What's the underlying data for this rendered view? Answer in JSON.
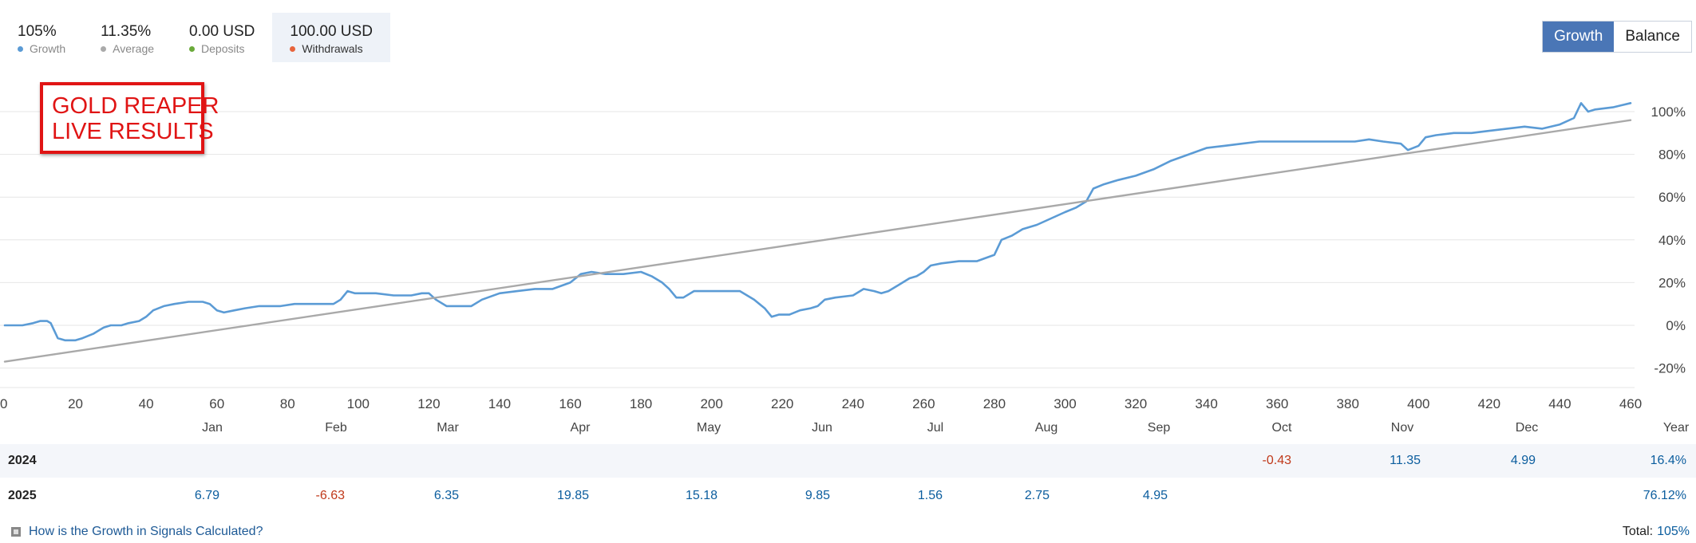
{
  "stats": [
    {
      "value": "105%",
      "label": "Growth",
      "color": "#5b9bd5",
      "selected": false
    },
    {
      "value": "11.35%",
      "label": "Average",
      "color": "#aaaaaa",
      "selected": false
    },
    {
      "value": "0.00 USD",
      "label": "Deposits",
      "color": "#6aaa3a",
      "selected": false
    },
    {
      "value": "100.00 USD",
      "label": "Withdrawals",
      "color": "#e8643c",
      "selected": true
    }
  ],
  "toggle": {
    "growth": "Growth",
    "balance": "Balance"
  },
  "banner": {
    "line1": "GOLD REAPER",
    "line2": "LIVE RESULTS"
  },
  "chart_data": {
    "type": "line",
    "xlim": [
      0,
      460
    ],
    "ylim": [
      -25,
      110
    ],
    "x_ticks": [
      0,
      20,
      40,
      60,
      80,
      100,
      120,
      140,
      160,
      180,
      200,
      220,
      240,
      260,
      280,
      300,
      320,
      340,
      360,
      380,
      400,
      420,
      440,
      460
    ],
    "y_ticks": [
      -20,
      0,
      20,
      40,
      60,
      80,
      100
    ],
    "y_tick_suffix": "%",
    "grid": true,
    "series": [
      {
        "color": "#5b9bd5",
        "points": [
          [
            0,
            0
          ],
          [
            5,
            0
          ],
          [
            8,
            1
          ],
          [
            10,
            2
          ],
          [
            12,
            2
          ],
          [
            13,
            1
          ],
          [
            15,
            -6
          ],
          [
            17,
            -7
          ],
          [
            20,
            -7
          ],
          [
            22,
            -6
          ],
          [
            25,
            -4
          ],
          [
            28,
            -1
          ],
          [
            30,
            0
          ],
          [
            33,
            0
          ],
          [
            35,
            1
          ],
          [
            38,
            2
          ],
          [
            40,
            4
          ],
          [
            42,
            7
          ],
          [
            45,
            9
          ],
          [
            48,
            10
          ],
          [
            52,
            11
          ],
          [
            56,
            11
          ],
          [
            58,
            10
          ],
          [
            60,
            7
          ],
          [
            62,
            6
          ],
          [
            65,
            7
          ],
          [
            68,
            8
          ],
          [
            72,
            9
          ],
          [
            75,
            9
          ],
          [
            78,
            9
          ],
          [
            82,
            10
          ],
          [
            86,
            10
          ],
          [
            90,
            10
          ],
          [
            93,
            10
          ],
          [
            95,
            12
          ],
          [
            97,
            16
          ],
          [
            99,
            15
          ],
          [
            102,
            15
          ],
          [
            105,
            15
          ],
          [
            110,
            14
          ],
          [
            115,
            14
          ],
          [
            118,
            15
          ],
          [
            120,
            15
          ],
          [
            122,
            12
          ],
          [
            125,
            9
          ],
          [
            128,
            9
          ],
          [
            132,
            9
          ],
          [
            135,
            12
          ],
          [
            140,
            15
          ],
          [
            145,
            16
          ],
          [
            150,
            17
          ],
          [
            155,
            17
          ],
          [
            160,
            20
          ],
          [
            163,
            24
          ],
          [
            166,
            25
          ],
          [
            170,
            24
          ],
          [
            175,
            24
          ],
          [
            180,
            25
          ],
          [
            183,
            23
          ],
          [
            186,
            20
          ],
          [
            188,
            17
          ],
          [
            190,
            13
          ],
          [
            192,
            13
          ],
          [
            195,
            16
          ],
          [
            200,
            16
          ],
          [
            205,
            16
          ],
          [
            208,
            16
          ],
          [
            212,
            12
          ],
          [
            215,
            8
          ],
          [
            217,
            4
          ],
          [
            219,
            5
          ],
          [
            222,
            5
          ],
          [
            225,
            7
          ],
          [
            228,
            8
          ],
          [
            230,
            9
          ],
          [
            232,
            12
          ],
          [
            235,
            13
          ],
          [
            240,
            14
          ],
          [
            243,
            17
          ],
          [
            246,
            16
          ],
          [
            248,
            15
          ],
          [
            250,
            16
          ],
          [
            253,
            19
          ],
          [
            256,
            22
          ],
          [
            258,
            23
          ],
          [
            260,
            25
          ],
          [
            262,
            28
          ],
          [
            265,
            29
          ],
          [
            270,
            30
          ],
          [
            275,
            30
          ],
          [
            280,
            33
          ],
          [
            282,
            40
          ],
          [
            285,
            42
          ],
          [
            288,
            45
          ],
          [
            292,
            47
          ],
          [
            296,
            50
          ],
          [
            300,
            53
          ],
          [
            303,
            55
          ],
          [
            306,
            58
          ],
          [
            308,
            64
          ],
          [
            311,
            66
          ],
          [
            315,
            68
          ],
          [
            320,
            70
          ],
          [
            325,
            73
          ],
          [
            330,
            77
          ],
          [
            335,
            80
          ],
          [
            340,
            83
          ],
          [
            345,
            84
          ],
          [
            350,
            85
          ],
          [
            355,
            86
          ],
          [
            360,
            86
          ],
          [
            365,
            86
          ],
          [
            370,
            86
          ],
          [
            375,
            86
          ],
          [
            378,
            86
          ],
          [
            382,
            86
          ],
          [
            386,
            87
          ],
          [
            390,
            86
          ],
          [
            395,
            85
          ],
          [
            397,
            82
          ],
          [
            400,
            84
          ],
          [
            402,
            88
          ],
          [
            405,
            89
          ],
          [
            410,
            90
          ],
          [
            415,
            90
          ],
          [
            420,
            91
          ],
          [
            425,
            92
          ],
          [
            430,
            93
          ],
          [
            435,
            92
          ],
          [
            440,
            94
          ],
          [
            444,
            97
          ],
          [
            446,
            104
          ],
          [
            448,
            100
          ],
          [
            450,
            101
          ],
          [
            455,
            102
          ],
          [
            460,
            104
          ]
        ]
      },
      {
        "color": "#a9a9a9",
        "points": [
          [
            0,
            -17
          ],
          [
            460,
            96
          ]
        ]
      }
    ]
  },
  "table": {
    "months": [
      "Jan",
      "Feb",
      "Mar",
      "Apr",
      "May",
      "Jun",
      "Jul",
      "Aug",
      "Sep",
      "Oct",
      "Nov",
      "Dec",
      "Year"
    ],
    "rows": [
      {
        "year": "2024",
        "values": [
          "",
          "",
          "",
          "",
          "",
          "",
          "",
          "",
          "",
          "-0.43",
          "11.35",
          "4.99",
          "16.4%"
        ]
      },
      {
        "year": "2025",
        "values": [
          "6.79",
          "-6.63",
          "6.35",
          "19.85",
          "15.18",
          "9.85",
          "1.56",
          "2.75",
          "4.95",
          "",
          "",
          "",
          "76.12%"
        ]
      }
    ]
  },
  "footer": {
    "help_link": "How is the Growth in Signals Calculated?",
    "total_label": "Total:",
    "total_value": "105%"
  }
}
